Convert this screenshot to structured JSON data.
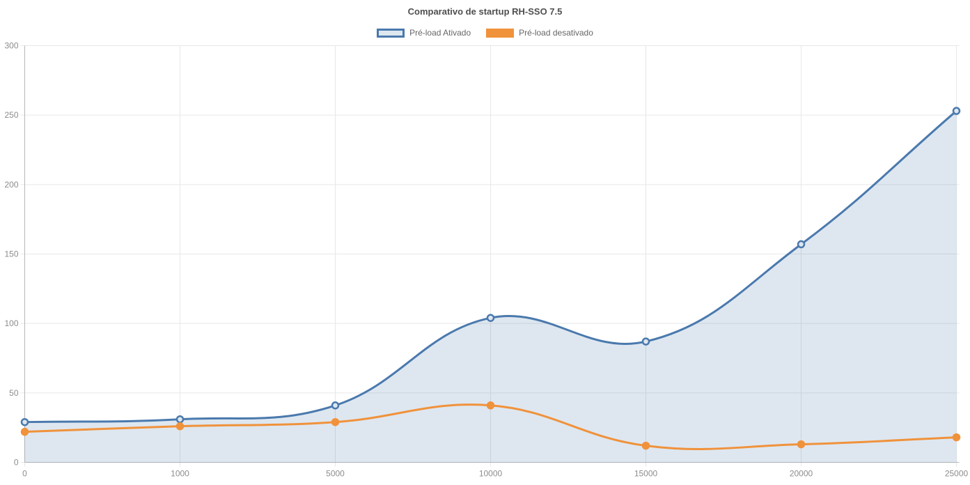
{
  "chart_data": {
    "type": "line",
    "title": "Comparativo de startup RH-SSO 7.5",
    "xlabel": "",
    "ylabel": "",
    "categories": [
      "0",
      "1000",
      "5000",
      "10000",
      "15000",
      "20000",
      "25000"
    ],
    "series": [
      {
        "name": "Pré-load Ativado",
        "values": [
          29,
          31,
          41,
          104,
          87,
          157,
          253
        ],
        "color": "#4a79ad",
        "fill": true,
        "fill_color": "rgba(74,121,173,0.18)",
        "point_fill": "#dee7f0",
        "swatch_bg": "#dee7f0"
      },
      {
        "name": "Pré-load desativado",
        "values": [
          22,
          26,
          29,
          41,
          12,
          13,
          18
        ],
        "color": "#f0923b",
        "fill": false,
        "fill_color": "none",
        "point_fill": "#f0923b",
        "swatch_bg": "#f0923b"
      }
    ],
    "ylim": [
      0,
      300
    ],
    "yticks": [
      0,
      50,
      100,
      150,
      200,
      250,
      300
    ],
    "grid": true,
    "legend_position": "top",
    "curve_tension": 0.4,
    "style": {
      "grid_color": "#e7e7e7",
      "axis_color": "#b7b7b7",
      "tick_color": "#8c8c8c",
      "title_color": "#4f4f4f",
      "legend_text_color": "#666666",
      "background": "#ffffff"
    }
  }
}
